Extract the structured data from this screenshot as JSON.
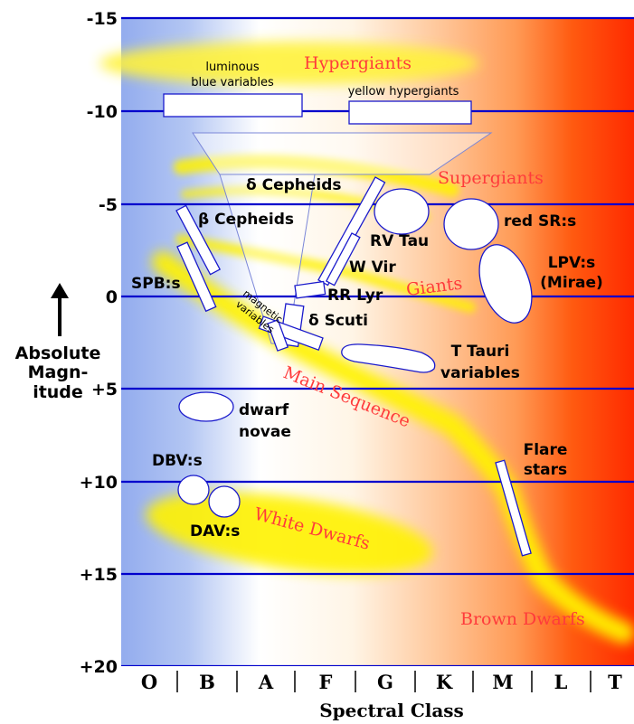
{
  "axes": {
    "y_label_lines": [
      "Absolute",
      "Magn-",
      "itude"
    ],
    "y_ticks": [
      "-15",
      "-10",
      "-5",
      "0",
      "+5",
      "+10",
      "+15",
      "+20"
    ],
    "x_label": "Spectral Class",
    "x_classes": [
      "O",
      "B",
      "A",
      "F",
      "G",
      "K",
      "M",
      "L",
      "T"
    ]
  },
  "regions": {
    "hypergiants": "Hypergiants",
    "supergiants": "Supergiants",
    "giants": "Giants",
    "main_sequence": "Main Sequence",
    "white_dwarfs": "White Dwarfs",
    "brown_dwarfs": "Brown Dwarfs"
  },
  "variables": {
    "lbv_line1": "luminous",
    "lbv_line2": "blue variables",
    "yellow_hypergiants": "yellow hypergiants",
    "delta_cepheids": "δ Cepheids",
    "beta_cepheids": "β Cepheids",
    "spb": "SPB:s",
    "magnetic_line1": "magnetic",
    "magnetic_line2": "variables",
    "rv_tau": "RV Tau",
    "w_vir": "W Vir",
    "rr_lyr": "RR Lyr",
    "delta_scuti": "δ Scuti",
    "red_sr": "red SR:s",
    "lpv_line1": "LPV:s",
    "lpv_line2": "(Mirae)",
    "t_tauri_line1": "T Tauri",
    "t_tauri_line2": "variables",
    "dwarf_novae_line1": "dwarf",
    "dwarf_novae_line2": "novae",
    "dbv": "DBV:s",
    "dav": "DAV:s",
    "flare_line1": "Flare",
    "flare_line2": "stars"
  },
  "colors": {
    "grid_line": "#0000cc",
    "region_text": "#ff3b3b",
    "background_blue": "#9db4f0",
    "background_red": "#ff3a00",
    "band_yellow": "#fff200"
  }
}
